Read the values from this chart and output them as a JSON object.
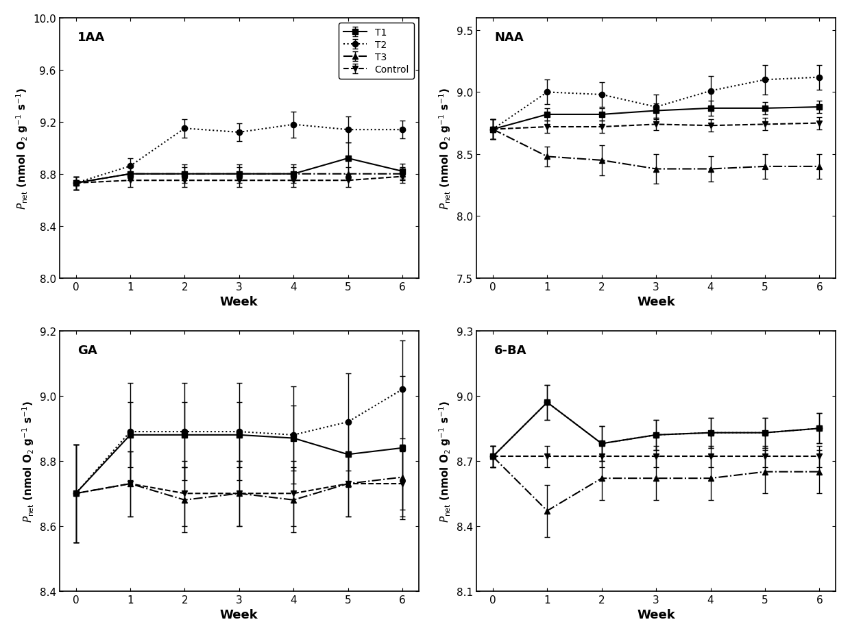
{
  "weeks": [
    0,
    1,
    2,
    3,
    4,
    5,
    6
  ],
  "panels": [
    {
      "title": "1AA",
      "ylim": [
        8.0,
        10.0
      ],
      "yticks": [
        8.0,
        8.4,
        8.8,
        9.2,
        9.6,
        10.0
      ],
      "show_legend": true,
      "series": [
        {
          "label": "T1",
          "linestyle": "-",
          "marker": "s",
          "y": [
            8.73,
            8.8,
            8.8,
            8.8,
            8.8,
            8.92,
            8.82
          ],
          "yerr": [
            0.05,
            0.05,
            0.05,
            0.05,
            0.05,
            0.12,
            0.06
          ]
        },
        {
          "label": "T2",
          "linestyle": ":",
          "marker": "o",
          "y": [
            8.73,
            8.86,
            9.15,
            9.12,
            9.18,
            9.14,
            9.14
          ],
          "yerr": [
            0.05,
            0.06,
            0.07,
            0.07,
            0.1,
            0.1,
            0.07
          ]
        },
        {
          "label": "T3",
          "linestyle": "-.",
          "marker": "^",
          "y": [
            8.73,
            8.8,
            8.8,
            8.8,
            8.8,
            8.8,
            8.8
          ],
          "yerr": [
            0.05,
            0.05,
            0.07,
            0.07,
            0.07,
            0.05,
            0.05
          ]
        },
        {
          "label": "Control",
          "linestyle": "--",
          "marker": "v",
          "y": [
            8.73,
            8.75,
            8.75,
            8.75,
            8.75,
            8.75,
            8.78
          ],
          "yerr": [
            0.05,
            0.05,
            0.05,
            0.05,
            0.05,
            0.05,
            0.05
          ]
        }
      ]
    },
    {
      "title": "NAA",
      "ylim": [
        7.5,
        9.6
      ],
      "yticks": [
        7.5,
        8.0,
        8.5,
        9.0,
        9.5
      ],
      "show_legend": false,
      "series": [
        {
          "label": "T1",
          "linestyle": "-",
          "marker": "s",
          "y": [
            8.7,
            8.82,
            8.82,
            8.85,
            8.87,
            8.87,
            8.88
          ],
          "yerr": [
            0.08,
            0.05,
            0.05,
            0.06,
            0.06,
            0.05,
            0.05
          ]
        },
        {
          "label": "T2",
          "linestyle": ":",
          "marker": "o",
          "y": [
            8.7,
            9.0,
            8.98,
            8.88,
            9.01,
            9.1,
            9.12
          ],
          "yerr": [
            0.08,
            0.1,
            0.1,
            0.1,
            0.12,
            0.12,
            0.1
          ]
        },
        {
          "label": "T3",
          "linestyle": "-.",
          "marker": "^",
          "y": [
            8.7,
            8.48,
            8.45,
            8.38,
            8.38,
            8.4,
            8.4
          ],
          "yerr": [
            0.08,
            0.08,
            0.12,
            0.12,
            0.1,
            0.1,
            0.1
          ]
        },
        {
          "label": "Control",
          "linestyle": "--",
          "marker": "v",
          "y": [
            8.7,
            8.72,
            8.72,
            8.74,
            8.73,
            8.74,
            8.75
          ],
          "yerr": [
            0.08,
            0.05,
            0.05,
            0.05,
            0.05,
            0.05,
            0.05
          ]
        }
      ]
    },
    {
      "title": "GA",
      "ylim": [
        8.4,
        9.2
      ],
      "yticks": [
        8.4,
        8.6,
        8.8,
        9.0,
        9.2
      ],
      "show_legend": false,
      "series": [
        {
          "label": "T1",
          "linestyle": "-",
          "marker": "s",
          "y": [
            8.7,
            8.88,
            8.88,
            8.88,
            8.87,
            8.82,
            8.84
          ],
          "yerr": [
            0.15,
            0.1,
            0.1,
            0.1,
            0.1,
            0.1,
            0.22
          ]
        },
        {
          "label": "T2",
          "linestyle": ":",
          "marker": "o",
          "y": [
            8.7,
            8.89,
            8.89,
            8.89,
            8.88,
            8.92,
            9.02
          ],
          "yerr": [
            0.15,
            0.15,
            0.15,
            0.15,
            0.15,
            0.15,
            0.15
          ]
        },
        {
          "label": "T3",
          "linestyle": "-.",
          "marker": "^",
          "y": [
            8.7,
            8.73,
            8.68,
            8.7,
            8.68,
            8.73,
            8.75
          ],
          "yerr": [
            0.15,
            0.1,
            0.1,
            0.1,
            0.1,
            0.1,
            0.1
          ]
        },
        {
          "label": "Control",
          "linestyle": "--",
          "marker": "v",
          "y": [
            8.7,
            8.73,
            8.7,
            8.7,
            8.7,
            8.73,
            8.73
          ],
          "yerr": [
            0.15,
            0.1,
            0.1,
            0.1,
            0.1,
            0.1,
            0.1
          ]
        }
      ]
    },
    {
      "title": "6-BA",
      "ylim": [
        8.1,
        9.3
      ],
      "yticks": [
        8.1,
        8.4,
        8.7,
        9.0,
        9.3
      ],
      "show_legend": false,
      "series": [
        {
          "label": "T1",
          "linestyle": "-",
          "marker": "s",
          "y": [
            8.72,
            8.97,
            8.78,
            8.82,
            8.83,
            8.83,
            8.85
          ],
          "yerr": [
            0.05,
            0.08,
            0.08,
            0.07,
            0.07,
            0.07,
            0.07
          ]
        },
        {
          "label": "T2",
          "linestyle": ":",
          "marker": "o",
          "y": [
            8.72,
            8.97,
            8.78,
            8.82,
            8.83,
            8.83,
            8.85
          ],
          "yerr": [
            0.05,
            0.08,
            0.08,
            0.07,
            0.07,
            0.07,
            0.07
          ]
        },
        {
          "label": "T3",
          "linestyle": "-.",
          "marker": "^",
          "y": [
            8.72,
            8.47,
            8.62,
            8.62,
            8.62,
            8.65,
            8.65
          ],
          "yerr": [
            0.05,
            0.12,
            0.1,
            0.1,
            0.1,
            0.1,
            0.1
          ]
        },
        {
          "label": "Control",
          "linestyle": "--",
          "marker": "v",
          "y": [
            8.72,
            8.72,
            8.72,
            8.72,
            8.72,
            8.72,
            8.72
          ],
          "yerr": [
            0.05,
            0.05,
            0.05,
            0.05,
            0.05,
            0.05,
            0.05
          ]
        }
      ]
    }
  ],
  "ylabel": "$P_{\\mathrm{net}}$ (nmol O$_2$ g$^{-1}$ s$^{-1}$)",
  "xlabel": "Week",
  "color": "black",
  "markersize": 6,
  "linewidth": 1.5,
  "capsize": 3,
  "elinewidth": 1.0
}
